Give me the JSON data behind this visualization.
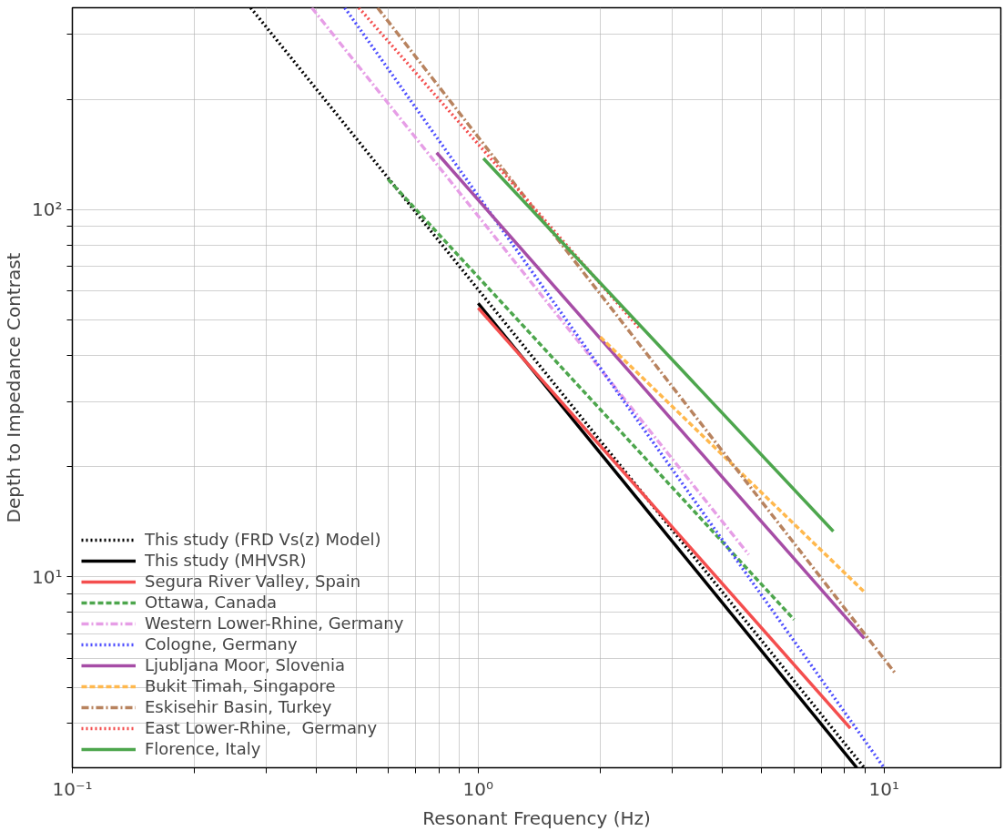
{
  "chart_data": {
    "type": "line",
    "xlabel": "Resonant Frequency (Hz)",
    "ylabel": "Depth to Impedance Contrast",
    "log": "xy",
    "xlim": [
      0.1,
      19.4
    ],
    "ylim": [
      3.02,
      355
    ],
    "xticks": [
      {
        "value": 0.1,
        "label": "10⁻¹"
      },
      {
        "value": 0.2,
        "label": null
      },
      {
        "value": 0.3,
        "label": null
      },
      {
        "value": 0.4,
        "label": null
      },
      {
        "value": 0.5,
        "label": null
      },
      {
        "value": 0.6,
        "label": null
      },
      {
        "value": 0.7,
        "label": null
      },
      {
        "value": 0.8,
        "label": null
      },
      {
        "value": 0.9,
        "label": null
      },
      {
        "value": 1,
        "label": "10⁰"
      },
      {
        "value": 2,
        "label": null
      },
      {
        "value": 3,
        "label": null
      },
      {
        "value": 4,
        "label": null
      },
      {
        "value": 5,
        "label": null
      },
      {
        "value": 6,
        "label": null
      },
      {
        "value": 7,
        "label": null
      },
      {
        "value": 8,
        "label": null
      },
      {
        "value": 9,
        "label": null
      },
      {
        "value": 10,
        "label": "10¹"
      }
    ],
    "yticks": [
      {
        "value": 4,
        "label": null
      },
      {
        "value": 5,
        "label": null
      },
      {
        "value": 6,
        "label": null
      },
      {
        "value": 7,
        "label": null
      },
      {
        "value": 8,
        "label": null
      },
      {
        "value": 9,
        "label": null
      },
      {
        "value": 10,
        "label": "10¹"
      },
      {
        "value": 20,
        "label": null
      },
      {
        "value": 30,
        "label": null
      },
      {
        "value": 40,
        "label": null
      },
      {
        "value": 50,
        "label": null
      },
      {
        "value": 60,
        "label": null
      },
      {
        "value": 70,
        "label": null
      },
      {
        "value": 80,
        "label": null
      },
      {
        "value": 90,
        "label": null
      },
      {
        "value": 100,
        "label": "10²"
      },
      {
        "value": 200,
        "label": null
      },
      {
        "value": 300,
        "label": null
      }
    ],
    "grid": true,
    "legend": "bottom left",
    "series": [
      {
        "name": "This study (FRD Vs(z) Model)",
        "color": "#000000",
        "line_style": "dotted",
        "x": [
          0.275,
          8.94
        ],
        "values": [
          355,
          3.02
        ]
      },
      {
        "name": "This study (MHVSR)",
        "color": "#000000",
        "line_style": "solid",
        "x": [
          1.0,
          8.57
        ],
        "values": [
          55.6,
          3.02
        ]
      },
      {
        "name": "Segura River Valley, Spain",
        "color": "#f44e4e",
        "line_style": "solid",
        "x": [
          1.0,
          8.26
        ],
        "values": [
          54,
          3.87
        ]
      },
      {
        "name": "Ottawa, Canada",
        "color": "#4da64d",
        "line_style": "dashed",
        "x": [
          0.6,
          6.0
        ],
        "values": [
          121,
          7.65
        ]
      },
      {
        "name": "Western Lower-Rhine, Germany",
        "color": "#e69ee6",
        "line_style": "dashdot",
        "x": [
          0.389,
          4.64
        ],
        "values": [
          355,
          11.5
        ]
      },
      {
        "name": "Cologne, Germany",
        "color": "#4d4dff",
        "line_style": "dotted",
        "x": [
          0.469,
          10.0
        ],
        "values": [
          355,
          3.02
        ]
      },
      {
        "name": "Ljubljana Moor, Slovenia",
        "color": "#a64da6",
        "line_style": "solid",
        "x": [
          0.79,
          8.94
        ],
        "values": [
          143,
          6.8
        ]
      },
      {
        "name": "Bukit Timah, Singapore",
        "color": "#ffb84d",
        "line_style": "dashed",
        "x": [
          2.0,
          8.94
        ],
        "values": [
          45,
          9.1
        ]
      },
      {
        "name": "Eskisehir Basin, Turkey",
        "color": "#b8835f",
        "line_style": "dashdot",
        "x": [
          0.565,
          10.7
        ],
        "values": [
          355,
          5.43
        ]
      },
      {
        "name": "East Lower-Rhine,  Germany",
        "color": "#f44e4e",
        "line_style": "dotted",
        "x": [
          0.508,
          2.51
        ],
        "values": [
          355,
          47.2
        ]
      },
      {
        "name": "Florence, Italy",
        "color": "#4da64d",
        "line_style": "solid",
        "x": [
          1.03,
          7.5
        ],
        "values": [
          138,
          13.3
        ]
      }
    ]
  }
}
